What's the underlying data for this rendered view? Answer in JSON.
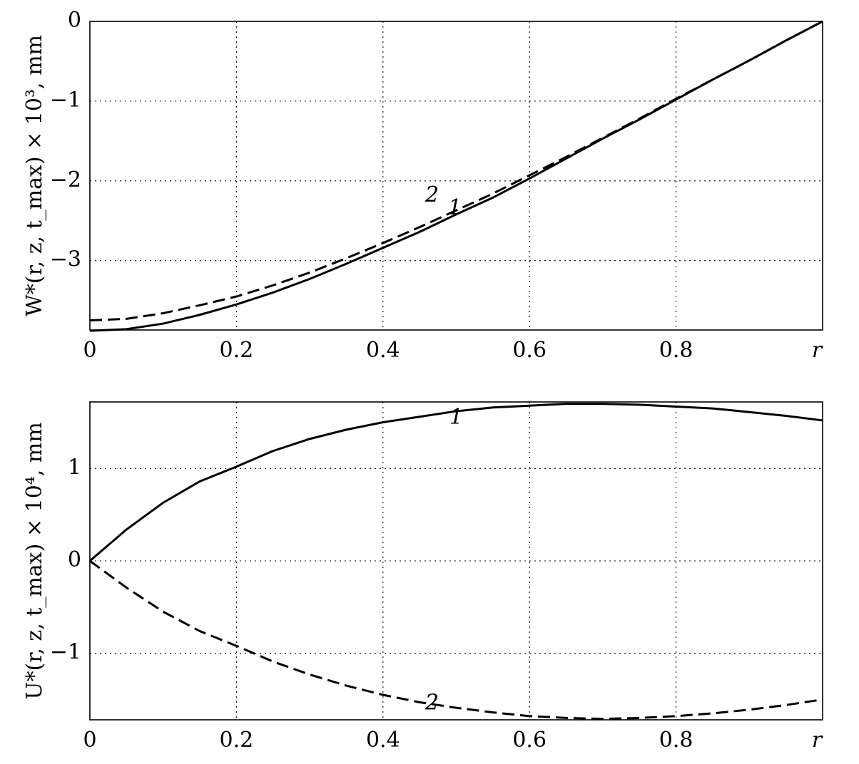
{
  "chart_data": [
    {
      "type": "line",
      "xlabel": "r",
      "ylabel": "W*(r, z, t_max) × 10³, mm",
      "xlim": [
        0,
        1
      ],
      "ylim": [
        -3.87,
        0
      ],
      "grid": true,
      "x_ticks": [
        {
          "value": 0,
          "label": "0"
        },
        {
          "value": 0.2,
          "label": "0.2"
        },
        {
          "value": 0.4,
          "label": "0.4"
        },
        {
          "value": 0.6,
          "label": "0.6"
        },
        {
          "value": 0.8,
          "label": "0.8"
        }
      ],
      "y_ticks": [
        {
          "value": 0,
          "label": "0"
        },
        {
          "value": -1,
          "label": "−1"
        },
        {
          "value": -2,
          "label": "−2"
        },
        {
          "value": -3,
          "label": "−3"
        }
      ],
      "series": [
        {
          "label": "1",
          "style": "solid",
          "x": [
            0,
            0.05,
            0.1,
            0.15,
            0.2,
            0.25,
            0.3,
            0.35,
            0.4,
            0.45,
            0.5,
            0.55,
            0.6,
            0.65,
            0.7,
            0.75,
            0.8,
            0.85,
            0.9,
            0.95,
            1.0
          ],
          "y": [
            -3.88,
            -3.86,
            -3.79,
            -3.68,
            -3.55,
            -3.4,
            -3.23,
            -3.04,
            -2.84,
            -2.64,
            -2.42,
            -2.21,
            -1.97,
            -1.72,
            -1.47,
            -1.23,
            -0.98,
            -0.73,
            -0.49,
            -0.24,
            0.0
          ],
          "label_at": [
            0.5,
            -2.42
          ]
        },
        {
          "label": "2",
          "style": "dashed",
          "x": [
            0,
            0.05,
            0.1,
            0.15,
            0.2,
            0.25,
            0.3,
            0.35,
            0.4,
            0.45,
            0.5,
            0.55,
            0.6,
            0.65,
            0.7,
            0.75,
            0.8,
            0.85,
            0.9,
            0.95,
            1.0
          ],
          "y": [
            -3.75,
            -3.73,
            -3.66,
            -3.56,
            -3.45,
            -3.31,
            -3.15,
            -2.97,
            -2.78,
            -2.58,
            -2.37,
            -2.16,
            -1.93,
            -1.7,
            -1.46,
            -1.22,
            -0.97,
            -0.73,
            -0.49,
            -0.24,
            0.0
          ],
          "label_at": [
            0.5,
            -2.37
          ]
        }
      ]
    },
    {
      "type": "line",
      "xlabel": "r",
      "ylabel": "U*(r, z, t_max) × 10⁴, mm",
      "xlim": [
        0,
        1
      ],
      "ylim": [
        -1.72,
        1.72
      ],
      "grid": true,
      "x_ticks": [
        {
          "value": 0,
          "label": "0"
        },
        {
          "value": 0.2,
          "label": "0.2"
        },
        {
          "value": 0.4,
          "label": "0.4"
        },
        {
          "value": 0.6,
          "label": "0.6"
        },
        {
          "value": 0.8,
          "label": "0.8"
        }
      ],
      "y_ticks": [
        {
          "value": 1,
          "label": "1"
        },
        {
          "value": 0,
          "label": "0"
        },
        {
          "value": -1,
          "label": "−1"
        }
      ],
      "series": [
        {
          "label": "1",
          "style": "solid",
          "x": [
            0,
            0.05,
            0.1,
            0.15,
            0.2,
            0.25,
            0.3,
            0.35,
            0.4,
            0.45,
            0.5,
            0.55,
            0.6,
            0.65,
            0.7,
            0.75,
            0.8,
            0.85,
            0.9,
            0.95,
            1.0
          ],
          "y": [
            0.0,
            0.34,
            0.63,
            0.86,
            1.02,
            1.19,
            1.32,
            1.42,
            1.5,
            1.56,
            1.62,
            1.66,
            1.68,
            1.7,
            1.7,
            1.69,
            1.67,
            1.65,
            1.61,
            1.57,
            1.52
          ],
          "label_at": [
            0.5,
            1.62
          ]
        },
        {
          "label": "2",
          "style": "dashed",
          "x": [
            0,
            0.05,
            0.1,
            0.15,
            0.2,
            0.25,
            0.3,
            0.35,
            0.4,
            0.45,
            0.5,
            0.55,
            0.6,
            0.65,
            0.7,
            0.75,
            0.8,
            0.85,
            0.9,
            0.95,
            1.0
          ],
          "y": [
            0.0,
            -0.29,
            -0.55,
            -0.76,
            -0.92,
            -1.09,
            -1.23,
            -1.35,
            -1.45,
            -1.53,
            -1.59,
            -1.64,
            -1.68,
            -1.7,
            -1.71,
            -1.7,
            -1.68,
            -1.65,
            -1.61,
            -1.56,
            -1.5
          ],
          "label_at": [
            0.5,
            -1.56
          ]
        }
      ]
    }
  ]
}
